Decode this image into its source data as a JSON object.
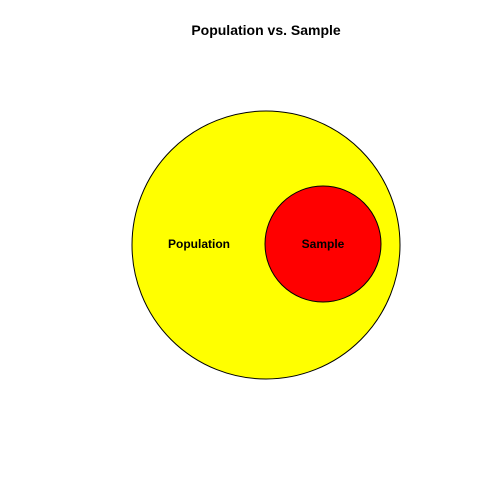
{
  "title": "Population vs. Sample",
  "population": {
    "label": "Population",
    "fill": "#ffff00",
    "stroke": "#000000"
  },
  "sample": {
    "label": "Sample",
    "fill": "#ff0000",
    "stroke": "#000000"
  }
}
